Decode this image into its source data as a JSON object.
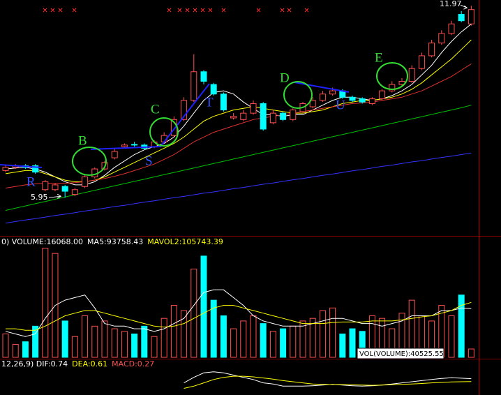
{
  "chart_data": [
    {
      "type": "candlestick",
      "ylim": [
        4.75,
        12.15
      ],
      "up_color": "#ff5050",
      "down_color": "#00ffff",
      "open": [
        6.8,
        6.9,
        6.95,
        6.95,
        6.2,
        6.2,
        6.3,
        6.05,
        6.3,
        6.6,
        6.85,
        7.2,
        7.55,
        7.62,
        7.6,
        7.55,
        7.7,
        7.9,
        8.4,
        9.0,
        9.9,
        9.5,
        9.2,
        8.45,
        8.4,
        8.6,
        8.9,
        8.3,
        8.6,
        8.4,
        8.65,
        8.8,
        9.0,
        9.2,
        9.3,
        9.1,
        9.05,
        8.9,
        9.05,
        9.3,
        9.5,
        9.6,
        10.0,
        10.4,
        10.8,
        11.1,
        11.7,
        11.4
      ],
      "high": [
        6.95,
        7.0,
        7.0,
        7.0,
        6.5,
        6.4,
        6.35,
        6.25,
        6.65,
        6.9,
        7.1,
        7.5,
        7.65,
        7.7,
        7.65,
        7.75,
        8.0,
        8.5,
        9.1,
        10.45,
        9.95,
        9.55,
        9.25,
        8.6,
        8.7,
        9.0,
        8.95,
        8.7,
        8.65,
        8.75,
        8.95,
        9.1,
        9.3,
        9.4,
        9.35,
        9.15,
        9.1,
        9.1,
        9.35,
        9.6,
        9.7,
        10.1,
        10.5,
        10.9,
        11.2,
        11.5,
        11.8,
        11.97
      ],
      "low": [
        6.75,
        6.85,
        6.85,
        6.7,
        6.15,
        6.15,
        5.95,
        6.0,
        6.25,
        6.55,
        6.8,
        7.15,
        7.5,
        7.55,
        7.45,
        7.5,
        7.65,
        7.85,
        8.35,
        8.95,
        9.5,
        9.15,
        8.65,
        8.4,
        8.35,
        8.55,
        8.05,
        8.25,
        8.35,
        8.35,
        8.6,
        8.75,
        8.95,
        9.15,
        9.05,
        8.95,
        8.9,
        8.85,
        9.0,
        9.25,
        9.45,
        9.55,
        9.95,
        10.35,
        10.75,
        11.05,
        11.45,
        11.35
      ],
      "close": [
        6.9,
        6.95,
        6.9,
        6.75,
        6.45,
        6.35,
        6.15,
        6.2,
        6.6,
        6.85,
        7.05,
        7.4,
        7.6,
        7.6,
        7.5,
        7.7,
        7.9,
        8.4,
        9.0,
        9.9,
        9.6,
        9.2,
        8.7,
        8.5,
        8.6,
        8.9,
        8.1,
        8.6,
        8.4,
        8.7,
        8.9,
        9.0,
        9.2,
        9.3,
        9.1,
        9.0,
        8.95,
        9.05,
        9.3,
        9.5,
        9.6,
        10.0,
        10.4,
        10.8,
        11.1,
        11.4,
        11.5,
        11.85
      ],
      "series": [
        {
          "color": "#ffffff",
          "values": [
            6.85,
            6.88,
            6.9,
            6.85,
            6.75,
            6.6,
            6.45,
            6.35,
            6.35,
            6.45,
            6.65,
            6.9,
            7.1,
            7.3,
            7.45,
            7.55,
            7.65,
            7.85,
            8.2,
            8.6,
            9.0,
            9.25,
            9.3,
            9.2,
            8.95,
            8.75,
            8.55,
            8.55,
            8.5,
            8.55,
            8.55,
            8.7,
            8.85,
            9.0,
            9.1,
            9.1,
            9.05,
            9.0,
            9.05,
            9.15,
            9.3,
            9.5,
            9.8,
            10.1,
            10.5,
            10.85,
            11.15,
            11.4
          ]
        },
        {
          "color": "#ffff00",
          "values": [
            6.7,
            6.75,
            6.8,
            6.8,
            6.7,
            6.6,
            6.5,
            6.45,
            6.45,
            6.5,
            6.6,
            6.75,
            6.9,
            7.05,
            7.2,
            7.35,
            7.5,
            7.65,
            7.85,
            8.1,
            8.35,
            8.5,
            8.6,
            8.7,
            8.75,
            8.8,
            8.75,
            8.7,
            8.65,
            8.6,
            8.6,
            8.65,
            8.7,
            8.8,
            8.9,
            8.95,
            9.0,
            9.0,
            9.05,
            9.1,
            9.2,
            9.35,
            9.55,
            9.8,
            10.05,
            10.3,
            10.6,
            10.9
          ]
        },
        {
          "color": "#e03030",
          "values": [
            6.25,
            6.3,
            6.35,
            6.38,
            6.4,
            6.4,
            6.4,
            6.42,
            6.45,
            6.5,
            6.55,
            6.62,
            6.7,
            6.8,
            6.9,
            7.0,
            7.15,
            7.3,
            7.5,
            7.7,
            7.85,
            8.0,
            8.1,
            8.2,
            8.3,
            8.4,
            8.45,
            8.5,
            8.55,
            8.6,
            8.65,
            8.7,
            8.75,
            8.8,
            8.85,
            8.9,
            8.92,
            8.95,
            9.0,
            9.05,
            9.1,
            9.2,
            9.3,
            9.45,
            9.6,
            9.75,
            9.95,
            10.15
          ]
        },
        {
          "color": "#00c000",
          "values": [
            5.55,
            5.62,
            5.69,
            5.76,
            5.83,
            5.9,
            5.97,
            6.04,
            6.11,
            6.18,
            6.25,
            6.32,
            6.39,
            6.46,
            6.53,
            6.6,
            6.67,
            6.74,
            6.81,
            6.88,
            6.95,
            7.02,
            7.09,
            7.16,
            7.23,
            7.3,
            7.37,
            7.44,
            7.51,
            7.58,
            7.65,
            7.72,
            7.79,
            7.86,
            7.93,
            8.0,
            8.07,
            8.14,
            8.21,
            8.28,
            8.35,
            8.42,
            8.49,
            8.56,
            8.63,
            8.7,
            8.77,
            8.85
          ]
        },
        {
          "color": "#3333ff",
          "values": [
            5.15,
            5.2,
            5.25,
            5.29,
            5.34,
            5.39,
            5.43,
            5.48,
            5.53,
            5.57,
            5.62,
            5.67,
            5.71,
            5.76,
            5.81,
            5.85,
            5.9,
            5.95,
            5.99,
            6.04,
            6.09,
            6.13,
            6.18,
            6.23,
            6.27,
            6.32,
            6.37,
            6.41,
            6.46,
            6.51,
            6.55,
            6.6,
            6.65,
            6.69,
            6.74,
            6.79,
            6.83,
            6.88,
            6.93,
            6.97,
            7.02,
            7.07,
            7.11,
            7.16,
            7.21,
            7.25,
            7.3,
            7.35
          ]
        }
      ],
      "price_labels": [
        11.97,
        5.95
      ],
      "annotations": [
        "B",
        "C",
        "D",
        "E",
        "R",
        "S",
        "T",
        "U"
      ]
    },
    {
      "type": "bar",
      "header": [
        {
          "text": "0) VOLUME:16068.00",
          "color": "#ffffff"
        },
        {
          "text": "MA5:93758.43",
          "color": "#ffffff"
        },
        {
          "text": "MAVOL2:105743.39",
          "color": "#ffff00"
        }
      ],
      "box_label": "VOL(VOLUME):40525.55",
      "ylim": [
        0,
        215000
      ],
      "values": [
        45000,
        25000,
        30000,
        60000,
        210000,
        200000,
        70000,
        40000,
        80000,
        60000,
        70000,
        55000,
        50000,
        45000,
        60000,
        40000,
        75000,
        100000,
        90000,
        170000,
        195000,
        110000,
        80000,
        55000,
        70000,
        80000,
        65000,
        50000,
        55000,
        60000,
        70000,
        75000,
        90000,
        95000,
        45000,
        55000,
        50000,
        80000,
        75000,
        55000,
        85000,
        110000,
        80000,
        70000,
        100000,
        80000,
        120000,
        16068
      ],
      "series": [
        {
          "color": "#ffffff",
          "values": [
            50000,
            45000,
            40000,
            45000,
            75000,
            100000,
            110000,
            115000,
            120000,
            95000,
            65000,
            60000,
            60000,
            55000,
            55000,
            50000,
            55000,
            65000,
            75000,
            100000,
            125000,
            130000,
            130000,
            115000,
            100000,
            80000,
            70000,
            65000,
            60000,
            60000,
            60000,
            65000,
            70000,
            75000,
            75000,
            70000,
            65000,
            65000,
            60000,
            65000,
            70000,
            80000,
            80000,
            80000,
            90000,
            90000,
            95000,
            93758.43
          ]
        },
        {
          "color": "#ffff00",
          "values": [
            55000,
            55000,
            52000,
            52000,
            60000,
            70000,
            80000,
            85000,
            90000,
            90000,
            85000,
            80000,
            75000,
            70000,
            65000,
            60000,
            58000,
            60000,
            65000,
            75000,
            85000,
            95000,
            100000,
            100000,
            95000,
            90000,
            85000,
            80000,
            75000,
            70000,
            65000,
            65000,
            65000,
            67000,
            68000,
            68000,
            68000,
            70000,
            70000,
            70000,
            72000,
            75000,
            78000,
            80000,
            85000,
            90000,
            100000,
            105743.39
          ]
        }
      ]
    },
    {
      "type": "line",
      "header": [
        {
          "text": "12,26,9) DIF:0.74",
          "color": "#ffffff"
        },
        {
          "text": "DEA:0.61",
          "color": "#ffff00"
        },
        {
          "text": "MACD:0.27",
          "color": "#ff5050"
        }
      ],
      "ylim": [
        0,
        1.2
      ],
      "series": [
        {
          "color": "#ffffff",
          "values": [
            null,
            null,
            null,
            null,
            null,
            null,
            null,
            null,
            null,
            null,
            null,
            null,
            null,
            null,
            null,
            null,
            null,
            null,
            0.55,
            0.8,
            1.0,
            1.05,
            1.0,
            0.9,
            0.8,
            0.7,
            0.55,
            0.5,
            0.4,
            0.4,
            0.4,
            0.42,
            0.45,
            0.48,
            0.45,
            0.42,
            0.4,
            0.42,
            0.45,
            0.5,
            0.55,
            0.6,
            0.65,
            0.7,
            0.75,
            0.78,
            0.76,
            0.74
          ]
        },
        {
          "color": "#ffff00",
          "values": [
            null,
            null,
            null,
            null,
            null,
            null,
            null,
            null,
            null,
            null,
            null,
            null,
            null,
            null,
            null,
            null,
            null,
            null,
            0.3,
            0.4,
            0.55,
            0.7,
            0.8,
            0.85,
            0.85,
            0.82,
            0.77,
            0.72,
            0.65,
            0.6,
            0.55,
            0.5,
            0.48,
            0.47,
            0.47,
            0.46,
            0.45,
            0.44,
            0.45,
            0.46,
            0.48,
            0.5,
            0.52,
            0.55,
            0.57,
            0.59,
            0.6,
            0.61
          ]
        }
      ]
    }
  ]
}
